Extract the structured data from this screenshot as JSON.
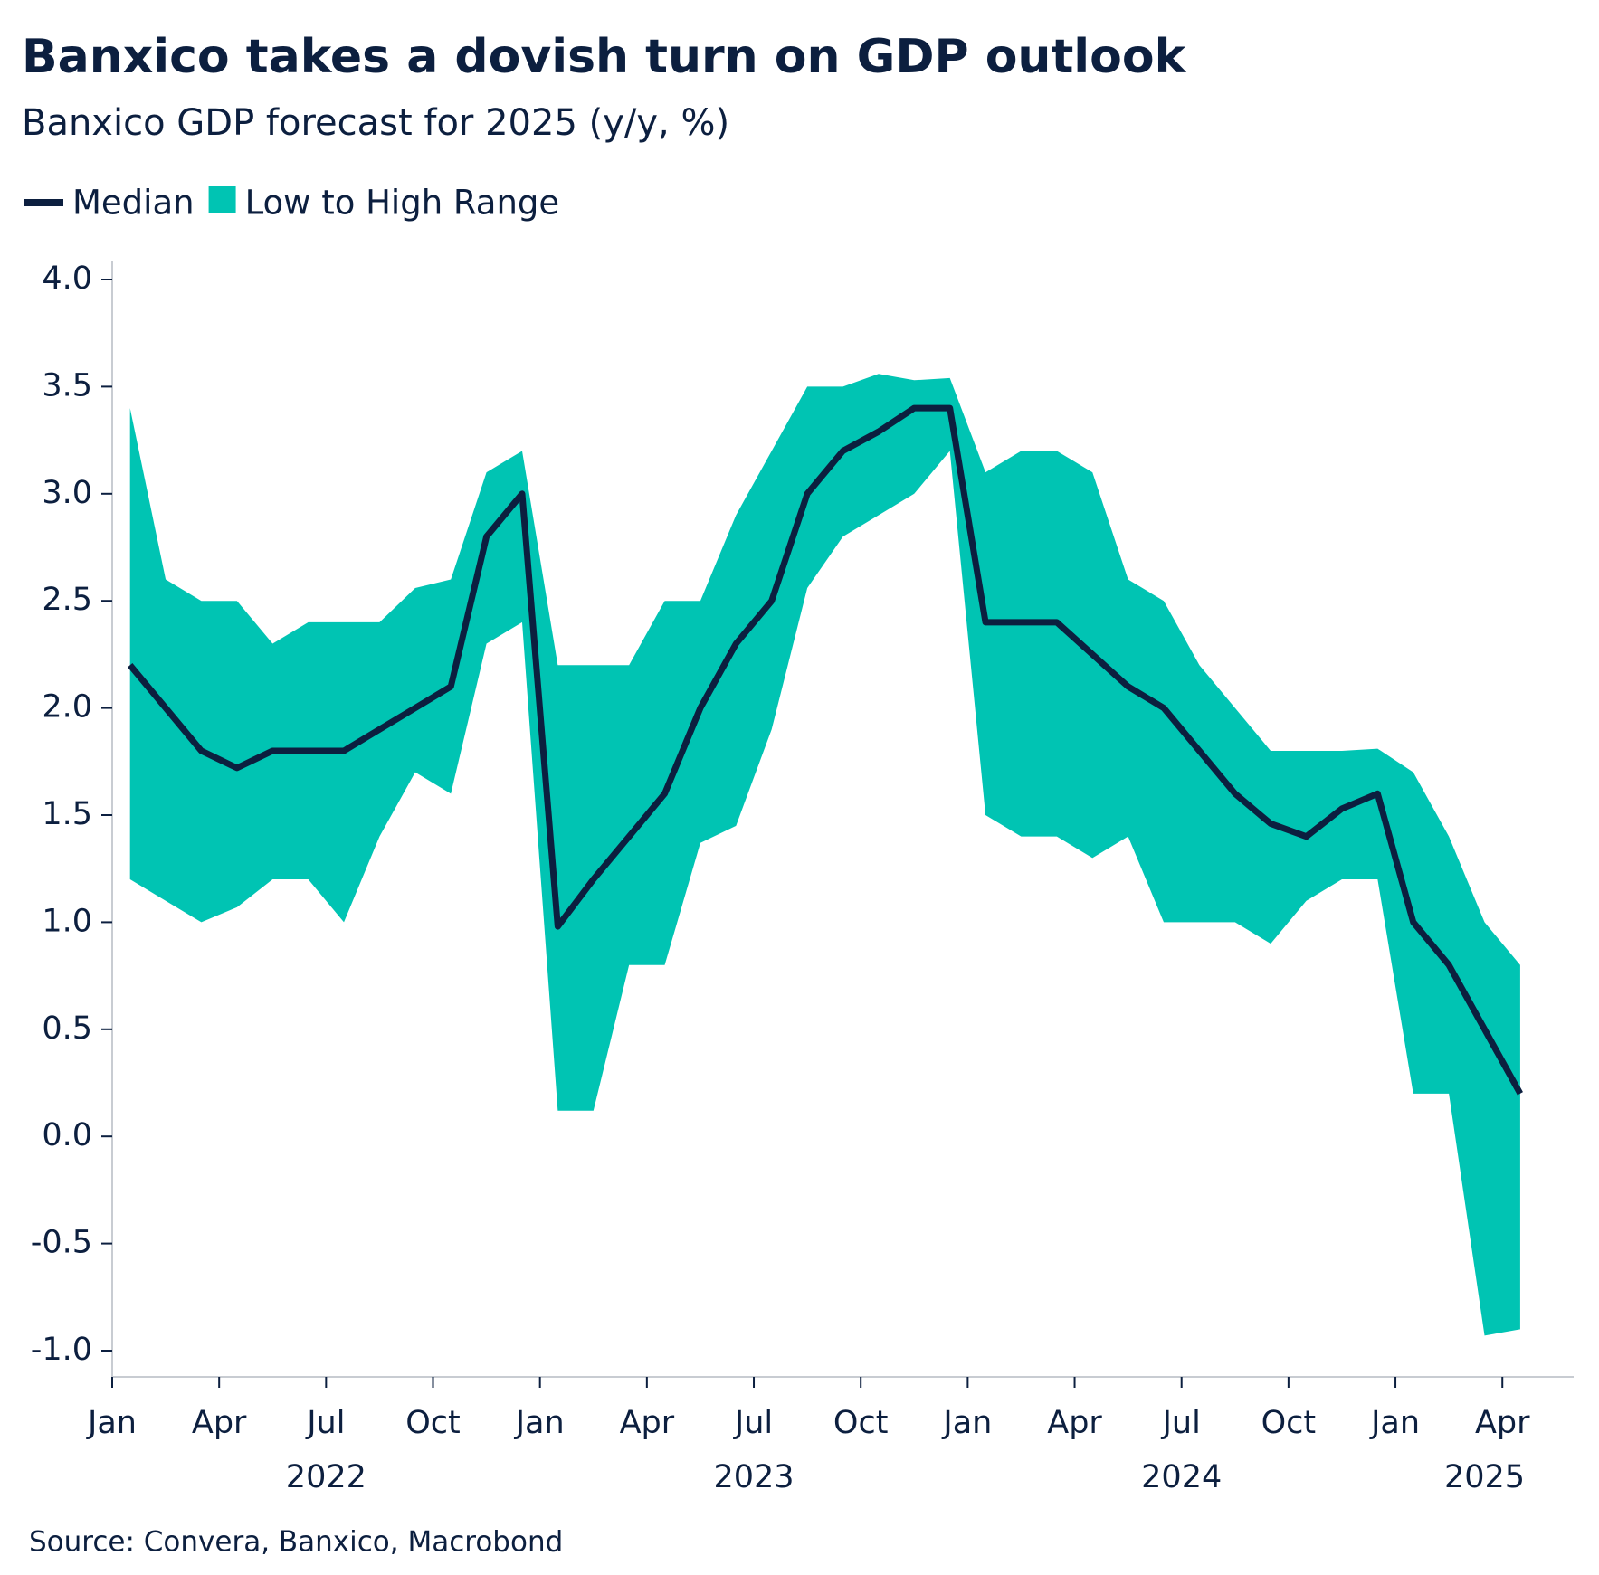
{
  "chart_data": {
    "type": "line-range",
    "title": "Banxico takes a dovish turn on GDP outlook",
    "subtitle": "Banxico GDP forecast for 2025 (y/y, %)",
    "source": "Source: Convera, Banxico, Macrobond",
    "x": [
      "2022-01",
      "2022-02",
      "2022-03",
      "2022-04",
      "2022-05",
      "2022-06",
      "2022-07",
      "2022-08",
      "2022-09",
      "2022-10",
      "2022-11",
      "2022-12",
      "2023-01",
      "2023-02",
      "2023-03",
      "2023-04",
      "2023-05",
      "2023-06",
      "2023-07",
      "2023-08",
      "2023-09",
      "2023-10",
      "2023-11",
      "2023-12",
      "2024-01",
      "2024-02",
      "2024-03",
      "2024-04",
      "2024-05",
      "2024-06",
      "2024-07",
      "2024-08",
      "2024-09",
      "2024-10",
      "2024-11",
      "2024-12",
      "2025-01",
      "2025-02",
      "2025-03",
      "2025-04"
    ],
    "series": [
      {
        "name": "Median",
        "color": "#0c1f3f",
        "values": [
          2.2,
          2.0,
          1.8,
          1.72,
          1.8,
          1.8,
          1.8,
          1.9,
          2.0,
          2.1,
          2.8,
          3.0,
          0.98,
          1.2,
          1.4,
          1.6,
          2.0,
          2.3,
          2.5,
          3.0,
          3.2,
          3.29,
          3.4,
          3.4,
          2.4,
          2.4,
          2.4,
          2.25,
          2.1,
          2.0,
          1.8,
          1.6,
          1.46,
          1.4,
          1.53,
          1.6,
          1.0,
          0.8,
          0.5,
          0.2
        ]
      },
      {
        "name": "Low to High Range",
        "color": "#00c4b3",
        "low": [
          1.2,
          1.1,
          1.0,
          1.07,
          1.2,
          1.2,
          1.0,
          1.4,
          1.7,
          1.6,
          2.3,
          2.4,
          0.12,
          0.12,
          0.8,
          0.8,
          1.37,
          1.45,
          1.9,
          2.56,
          2.8,
          2.9,
          3.0,
          3.2,
          1.5,
          1.4,
          1.4,
          1.3,
          1.4,
          1.0,
          1.0,
          1.0,
          0.9,
          1.1,
          1.2,
          1.2,
          0.2,
          0.2,
          -0.93,
          -0.9
        ],
        "high": [
          3.4,
          2.6,
          2.5,
          2.5,
          2.3,
          2.4,
          2.4,
          2.4,
          2.56,
          2.6,
          3.1,
          3.2,
          2.2,
          2.2,
          2.2,
          2.5,
          2.5,
          2.9,
          3.2,
          3.5,
          3.5,
          3.56,
          3.53,
          3.54,
          3.1,
          3.2,
          3.2,
          3.1,
          2.6,
          2.5,
          2.2,
          2.0,
          1.8,
          1.8,
          1.8,
          1.81,
          1.7,
          1.4,
          1.0,
          0.8
        ]
      }
    ],
    "ylim": [
      -1.0,
      4.0
    ],
    "yticks": [
      {
        "value": -1,
        "label": "-1.0"
      },
      -0.5,
      {
        "value": 0,
        "label": "0.0"
      },
      0.5,
      {
        "value": 1,
        "label": "1.0"
      },
      1.5,
      {
        "value": 2,
        "label": "2.0"
      },
      2.5,
      {
        "value": 3,
        "label": "3.0"
      },
      3.5,
      {
        "value": 4,
        "label": "4.0"
      }
    ],
    "xlim": [
      "2022-01",
      "2025-06"
    ],
    "xticks": [
      {
        "value": "2022-01",
        "label": "Jan"
      },
      {
        "value": "2022-04",
        "label": "Apr"
      },
      {
        "value": "2022-07",
        "label": "Jul"
      },
      {
        "value": "2022-10",
        "label": "Oct"
      },
      {
        "value": "2023-01",
        "label": "Jan"
      },
      {
        "value": "2023-04",
        "label": "Apr"
      },
      {
        "value": "2023-07",
        "label": "Jul"
      },
      {
        "value": "2023-10",
        "label": "Oct"
      },
      {
        "value": "2024-01",
        "label": "Jan"
      },
      {
        "value": "2024-04",
        "label": "Apr"
      },
      {
        "value": "2024-07",
        "label": "Jul"
      },
      {
        "value": "2024-10",
        "label": "Oct"
      },
      {
        "value": "2025-01",
        "label": "Jan"
      },
      {
        "value": "2025-04",
        "label": "Apr"
      }
    ],
    "years": [
      "2022",
      "2023",
      "2024",
      "2025"
    ],
    "grid": false
  }
}
